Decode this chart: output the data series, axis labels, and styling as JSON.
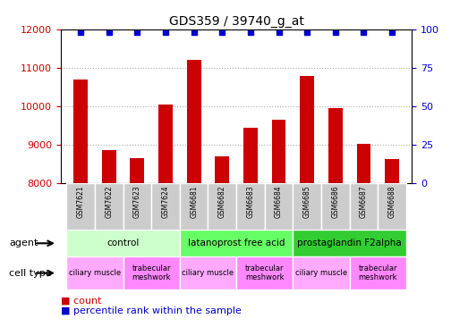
{
  "title": "GDS359 / 39740_g_at",
  "samples": [
    "GSM7621",
    "GSM7622",
    "GSM7623",
    "GSM7624",
    "GSM6681",
    "GSM6682",
    "GSM6683",
    "GSM6684",
    "GSM6685",
    "GSM6686",
    "GSM6687",
    "GSM6688"
  ],
  "counts": [
    10700,
    8850,
    8650,
    10050,
    11200,
    8700,
    9450,
    9650,
    10800,
    9950,
    9020,
    8630
  ],
  "percentiles": [
    100,
    100,
    100,
    100,
    100,
    100,
    100,
    100,
    100,
    100,
    100,
    100
  ],
  "ylim_left": [
    8000,
    12000
  ],
  "ylim_right": [
    0,
    100
  ],
  "yticks_left": [
    8000,
    9000,
    10000,
    11000,
    12000
  ],
  "yticks_right": [
    0,
    25,
    50,
    75,
    100
  ],
  "bar_color": "#cc0000",
  "dot_color": "#0000cc",
  "bar_width": 0.5,
  "agents": [
    {
      "label": "control",
      "start": 0,
      "end": 4,
      "color": "#ccffcc"
    },
    {
      "label": "latanoprost free acid",
      "start": 4,
      "end": 8,
      "color": "#66ff66"
    },
    {
      "label": "prostaglandin F2alpha",
      "start": 8,
      "end": 12,
      "color": "#33cc33"
    }
  ],
  "cell_types": [
    {
      "label": "ciliary muscle",
      "start": 0,
      "end": 2,
      "color": "#ffaaff"
    },
    {
      "label": "trabecular\nmeshwork",
      "start": 2,
      "end": 4,
      "color": "#ff88ff"
    },
    {
      "label": "ciliary muscle",
      "start": 4,
      "end": 6,
      "color": "#ffaaff"
    },
    {
      "label": "trabecular\nmeshwork",
      "start": 6,
      "end": 8,
      "color": "#ff88ff"
    },
    {
      "label": "ciliary muscle",
      "start": 8,
      "end": 10,
      "color": "#ffaaff"
    },
    {
      "label": "trabecular\nmeshwork",
      "start": 10,
      "end": 12,
      "color": "#ff88ff"
    }
  ],
  "agent_label": "agent",
  "cell_type_label": "cell type",
  "legend_count_label": "count",
  "legend_percentile_label": "percentile rank within the sample",
  "grid_color": "#aaaaaa",
  "sample_box_color": "#cccccc",
  "xlabel_color": "#cc0000",
  "right_axis_color": "#0000cc",
  "left_tick_color": "#cc0000"
}
